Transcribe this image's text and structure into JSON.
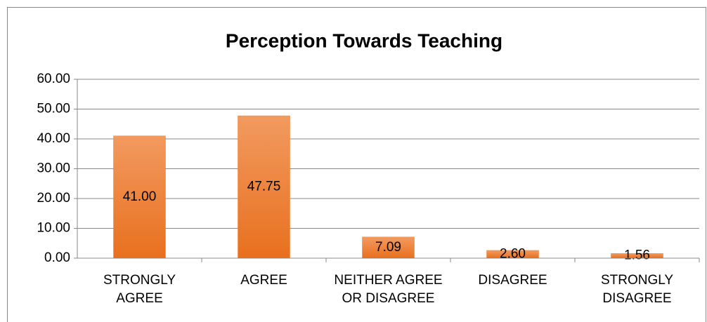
{
  "chart_data": {
    "type": "bar",
    "title": "Perception  Towards Teaching",
    "categories": [
      "STRONGLY AGREE",
      "AGREE",
      "NEITHER AGREE OR DISAGREE",
      "DISAGREE",
      "STRONGLY DISAGREE"
    ],
    "values": [
      41.0,
      47.75,
      7.09,
      2.6,
      1.56
    ],
    "value_labels": [
      "41.00",
      "47.75",
      "7.09",
      "2.60",
      "1.56"
    ],
    "color": "#ed7d31",
    "ylim": [
      0,
      60
    ],
    "yticks": [
      {
        "value": 0,
        "label": "0.00"
      },
      {
        "value": 10,
        "label": "10.00"
      },
      {
        "value": 20,
        "label": "20.00"
      },
      {
        "value": 30,
        "label": "30.00"
      },
      {
        "value": 40,
        "label": "40.00"
      },
      {
        "value": 50,
        "label": "50.00"
      },
      {
        "value": 60,
        "label": "60.00"
      }
    ],
    "grid": true
  }
}
